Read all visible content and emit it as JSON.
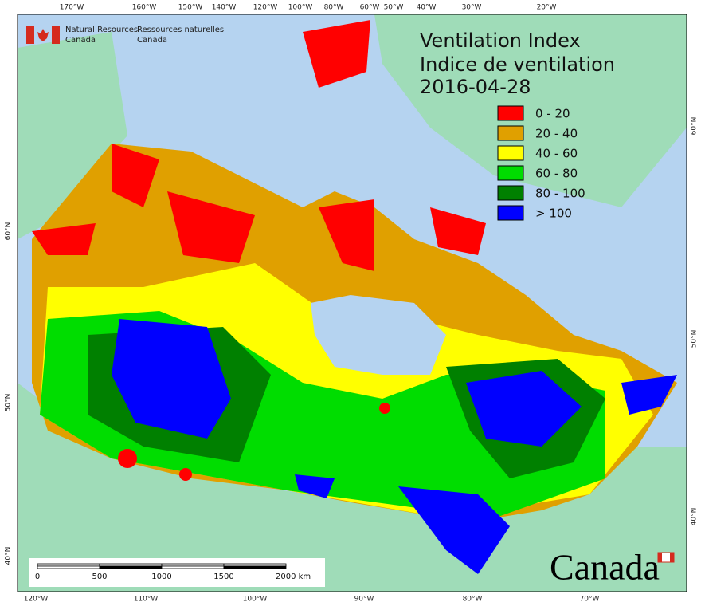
{
  "header": {
    "title": "Ventilation Index",
    "subtitle": "Indice de ventilation",
    "date": "2016-04-28"
  },
  "logo": {
    "english": [
      "Natural Resources",
      "Canada"
    ],
    "french": [
      "Ressources naturelles",
      "Canada"
    ]
  },
  "wordmark": "Canada",
  "legend": [
    {
      "label": "0 - 20",
      "color": "#ff0000"
    },
    {
      "label": "20 - 40",
      "color": "#e0a000"
    },
    {
      "label": "40 - 60",
      "color": "#ffff00"
    },
    {
      "label": "60 - 80",
      "color": "#00dd00"
    },
    {
      "label": "80 - 100",
      "color": "#008000"
    },
    {
      "label": "> 100",
      "color": "#0000ff"
    }
  ],
  "graticule": {
    "top": [
      "170°W",
      "160°W",
      "150°W",
      "140°W",
      "120°W",
      "100°W",
      "80°W",
      "60°W",
      "50°W",
      "40°W",
      "30°W",
      "20°W"
    ],
    "bottom": [
      "120°W",
      "110°W",
      "100°W",
      "90°W",
      "80°W",
      "70°W"
    ],
    "left": [
      "60°N",
      "50°N",
      "40°N"
    ],
    "right": [
      "60°N",
      "50°N",
      "40°N"
    ]
  },
  "scale_bar": [
    "0",
    "500",
    "1000",
    "1500",
    "2000 km"
  ]
}
